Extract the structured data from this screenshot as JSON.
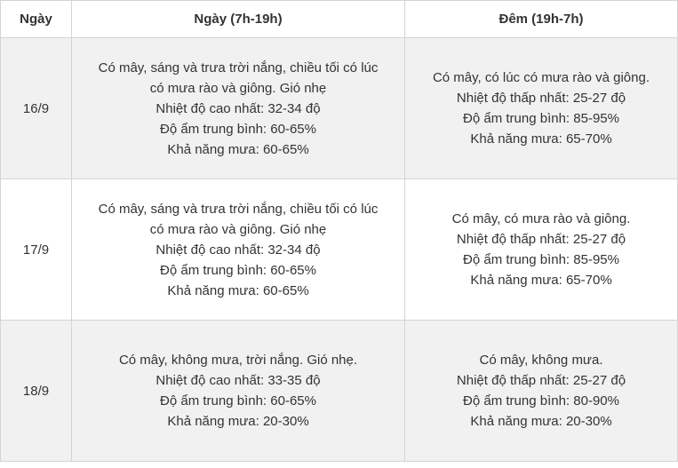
{
  "headers": [
    "Ngày",
    "Ngày (7h-19h)",
    "Đêm (19h-7h)"
  ],
  "rows": [
    {
      "date": "16/9",
      "day": [
        "Có mây, sáng và trưa trời nắng, chiều tối có lúc",
        "có mưa rào và giông. Gió nhẹ",
        "Nhiệt độ cao nhất: 32-34 độ",
        "Độ ẩm trung bình: 60-65%",
        "Khả năng mưa: 60-65%"
      ],
      "night": [
        "Có mây, có lúc có mưa rào và giông.",
        "Nhiệt độ thấp nhất: 25-27 độ",
        "Độ ẩm trung bình: 85-95%",
        "Khả năng mưa: 65-70%"
      ]
    },
    {
      "date": "17/9",
      "day": [
        "Có mây, sáng và trưa trời nắng, chiều tối có lúc",
        "có mưa rào và giông. Gió nhẹ",
        "Nhiệt độ cao nhất: 32-34 độ",
        "Độ ẩm trung bình: 60-65%",
        "Khả năng mưa: 60-65%"
      ],
      "night": [
        "Có mây, có mưa rào và giông.",
        "Nhiệt độ thấp nhất: 25-27 độ",
        "Độ ẩm trung bình: 85-95%",
        "Khả năng mưa: 65-70%"
      ]
    },
    {
      "date": "18/9",
      "day": [
        "Có mây, không mưa, trời nắng. Gió nhẹ.",
        "Nhiệt độ cao nhất: 33-35 độ",
        "Độ ẩm trung bình: 60-65%",
        "Khả năng mưa: 20-30%"
      ],
      "night": [
        "Có mây, không mưa.",
        "Nhiệt độ thấp nhất: 25-27 độ",
        "Độ ẩm trung bình: 80-90%",
        "Khả năng mưa: 20-30%"
      ]
    }
  ]
}
